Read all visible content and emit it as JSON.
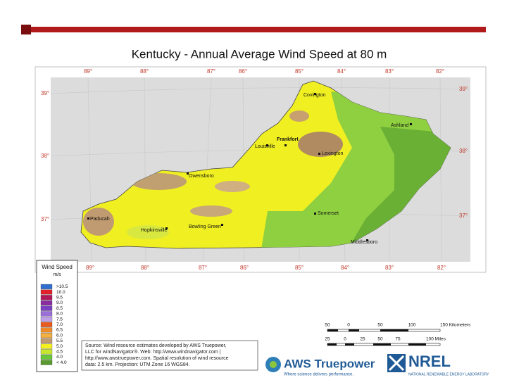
{
  "title": "Kentucky - Annual Average Wind Speed at 80 m",
  "longitudes_top": [
    "89°",
    "88°",
    "87°",
    "86°",
    "85°",
    "84°",
    "83°",
    "82°"
  ],
  "longitudes_bottom": [
    "89°",
    "88°",
    "87°",
    "86°",
    "85°",
    "84°",
    "83°",
    "82°"
  ],
  "latitudes_left": [
    "39°",
    "38°",
    "37°"
  ],
  "latitudes_right": [
    "39°",
    "38°",
    "37°"
  ],
  "cities": [
    "Covington",
    "Ashland",
    "Frankfort",
    "Louisville",
    "Lexington",
    "Owensboro",
    "Somerset",
    "Paducah",
    "Hopkinsville",
    "Bowling Green",
    "Middlesboro"
  ],
  "legend": {
    "title": "Wind Speed",
    "unit": "m/s",
    "items": [
      {
        "label": ">10.5",
        "color": "#2f6fd0"
      },
      {
        "label": "10.0",
        "color": "#e0202a"
      },
      {
        "label": "9.5",
        "color": "#b0185a"
      },
      {
        "label": "9.0",
        "color": "#8a2ca0"
      },
      {
        "label": "8.5",
        "color": "#7a40c0"
      },
      {
        "label": "8.0",
        "color": "#9a70d8"
      },
      {
        "label": "7.5",
        "color": "#c0a0e8"
      },
      {
        "label": "7.0",
        "color": "#e85a1e"
      },
      {
        "label": "6.5",
        "color": "#f08a28"
      },
      {
        "label": "6.0",
        "color": "#f4b040"
      },
      {
        "label": "5.5",
        "color": "#c09a70"
      },
      {
        "label": "5.0",
        "color": "#f4f01e"
      },
      {
        "label": "4.5",
        "color": "#c8e830"
      },
      {
        "label": "4.0",
        "color": "#68c838"
      },
      {
        "label": "< 4.0",
        "color": "#5a9a30"
      }
    ]
  },
  "source": [
    "Source: Wind resource estimates developed by AWS Truepower,",
    "LLC for windNavigator®. Web: http://www.windnavigator.com |",
    "http://www.awstruepower.com. Spatial resolution of wind resource",
    "data: 2.5 km. Projection: UTM Zone 16 WGS84."
  ],
  "scale_km": [
    "50",
    "0",
    "50",
    "100",
    "150 Kilometers"
  ],
  "scale_miles": [
    "25",
    "0",
    "25",
    "50",
    "75",
    "100 Miles"
  ],
  "aws": {
    "name": "AWS Truepower",
    "tagline": "Where science delivers performance."
  },
  "nrel": {
    "name": "NREL",
    "subtitle": "NATIONAL RENEWABLE ENERGY LABORATORY"
  }
}
